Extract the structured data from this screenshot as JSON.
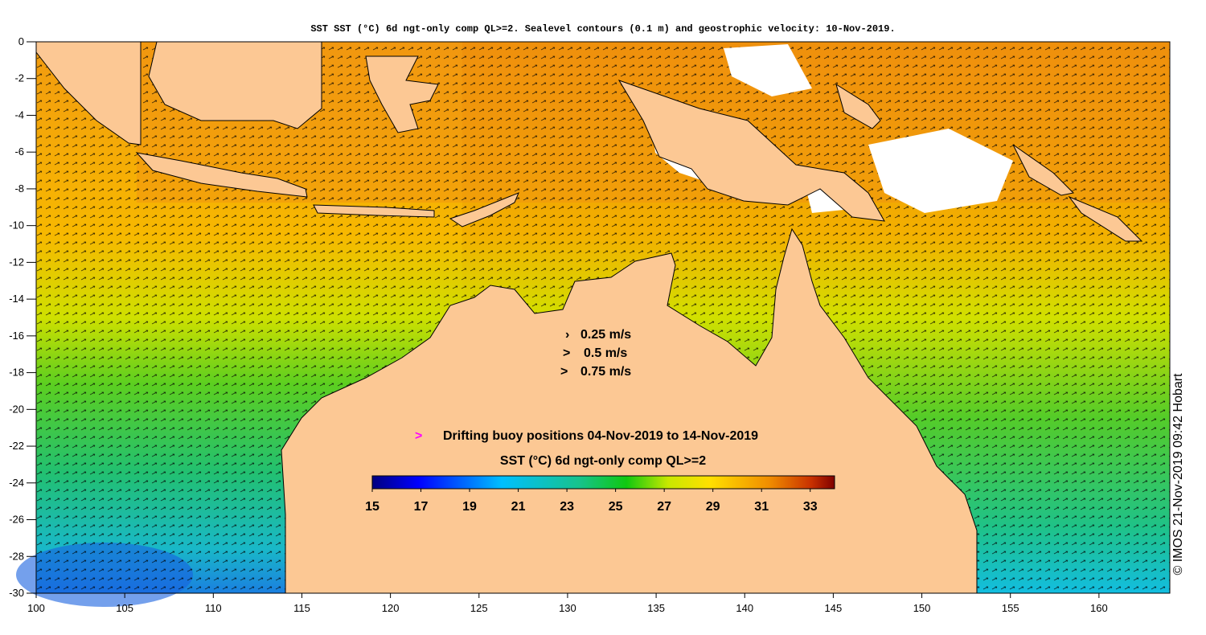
{
  "title": "SST SST (°C) 6d ngt-only comp QL>=2. Sealevel contours (0.1 m) and geostrophic velocity: 10-Nov-2019.",
  "credit": "© IMOS 21-Nov-2019 09:42 Hobart",
  "colors": {
    "land": "#fcc894",
    "background": "#ffffff",
    "buoy_marker": "#ff00ff",
    "sst_cold": "#00007f",
    "sst_hot": "#7f0000"
  },
  "axes": {
    "lon_ticks": [
      "100",
      "105",
      "110",
      "115",
      "120",
      "125",
      "130",
      "135",
      "140",
      "145",
      "150",
      "155",
      "160"
    ],
    "lat_ticks": [
      "0",
      "-2",
      "-4",
      "-6",
      "-8",
      "-10",
      "-12",
      "-14",
      "-16",
      "-18",
      "-20",
      "-22",
      "-24",
      "-26",
      "-28",
      "-30"
    ],
    "lon_range": [
      100,
      164
    ],
    "lat_range": [
      -30,
      0
    ]
  },
  "velocity_legend": [
    {
      "label": "0.25 m/s",
      "marker": "›"
    },
    {
      "label": "0.5 m/s",
      "marker": ">"
    },
    {
      "label": "0.75 m/s",
      "marker": ">"
    }
  ],
  "buoy_legend": {
    "marker": ">",
    "label": "Drifting buoy positions 04-Nov-2019 to 14-Nov-2019"
  },
  "colorbar": {
    "title": "SST (°C) 6d ngt-only comp QL>=2",
    "range": [
      15,
      34
    ],
    "tick_labels": [
      "15",
      "17",
      "19",
      "21",
      "23",
      "25",
      "27",
      "29",
      "31",
      "33"
    ],
    "tick_values": [
      15,
      17,
      19,
      21,
      23,
      25,
      27,
      29,
      31,
      33
    ]
  }
}
